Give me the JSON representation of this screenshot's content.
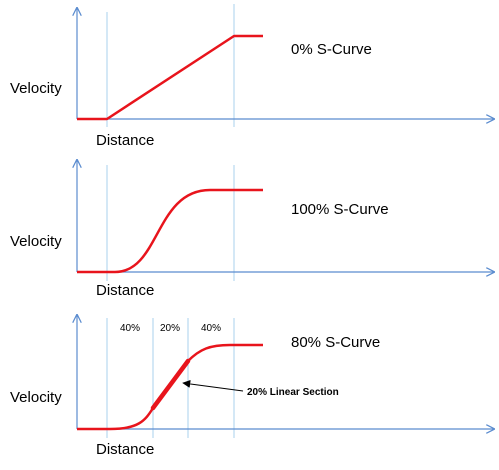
{
  "panels": [
    {
      "ylabel": "Velocity",
      "xlabel": "Distance",
      "title": "0% S-Curve"
    },
    {
      "ylabel": "Velocity",
      "xlabel": "Distance",
      "title": "100% S-Curve"
    },
    {
      "ylabel": "Velocity",
      "xlabel": "Distance",
      "title": "80% S-Curve",
      "segments": [
        "40%",
        "20%",
        "40%"
      ],
      "annotation": "20% Linear Section"
    }
  ],
  "colors": {
    "curve": "#e8141c",
    "axis": "#5b8ccf",
    "guide": "#a9d2ee",
    "arrow": "#000000"
  }
}
